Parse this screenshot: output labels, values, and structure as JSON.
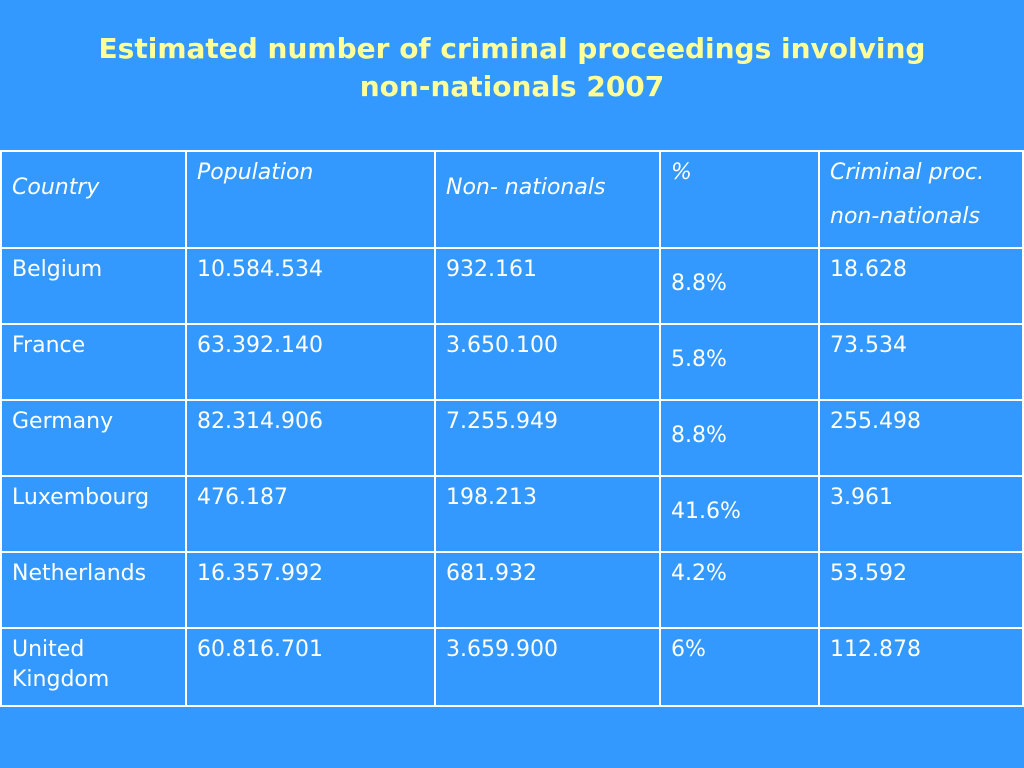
{
  "title": {
    "line1": "Estimated number of criminal proceedings involving",
    "line2": "non-nationals 2007"
  },
  "table": {
    "headers": {
      "country": "Country",
      "population": "Population",
      "non_nationals": "Non- nationals",
      "percent": "%",
      "criminal_line1": "Criminal proc.",
      "criminal_line2": "non-nationals"
    },
    "rows": [
      {
        "country": "Belgium",
        "population": "10.584.534",
        "non_nationals": "932.161",
        "percent": "8.8%",
        "criminal": "18.628"
      },
      {
        "country": "France",
        "population": "63.392.140",
        "non_nationals": "3.650.100",
        "percent": "5.8%",
        "criminal": "73.534"
      },
      {
        "country": "Germany",
        "population": "82.314.906",
        "non_nationals": "7.255.949",
        "percent": "8.8%",
        "criminal": "255.498"
      },
      {
        "country": "Luxembourg",
        "population": "476.187",
        "non_nationals": "198.213",
        "percent": "41.6%",
        "criminal": "3.961"
      },
      {
        "country": "Netherlands",
        "population": "16.357.992",
        "non_nationals": "681.932",
        "percent": "4.2%",
        "criminal": "53.592"
      },
      {
        "country": "United Kingdom",
        "population": "60.816.701",
        "non_nationals": "3.659.900",
        "percent": "6%",
        "criminal": "112.878"
      }
    ]
  },
  "colors": {
    "background": "#3399ff",
    "title": "#ffff99",
    "text": "#ffffff",
    "border": "#ffffff"
  }
}
